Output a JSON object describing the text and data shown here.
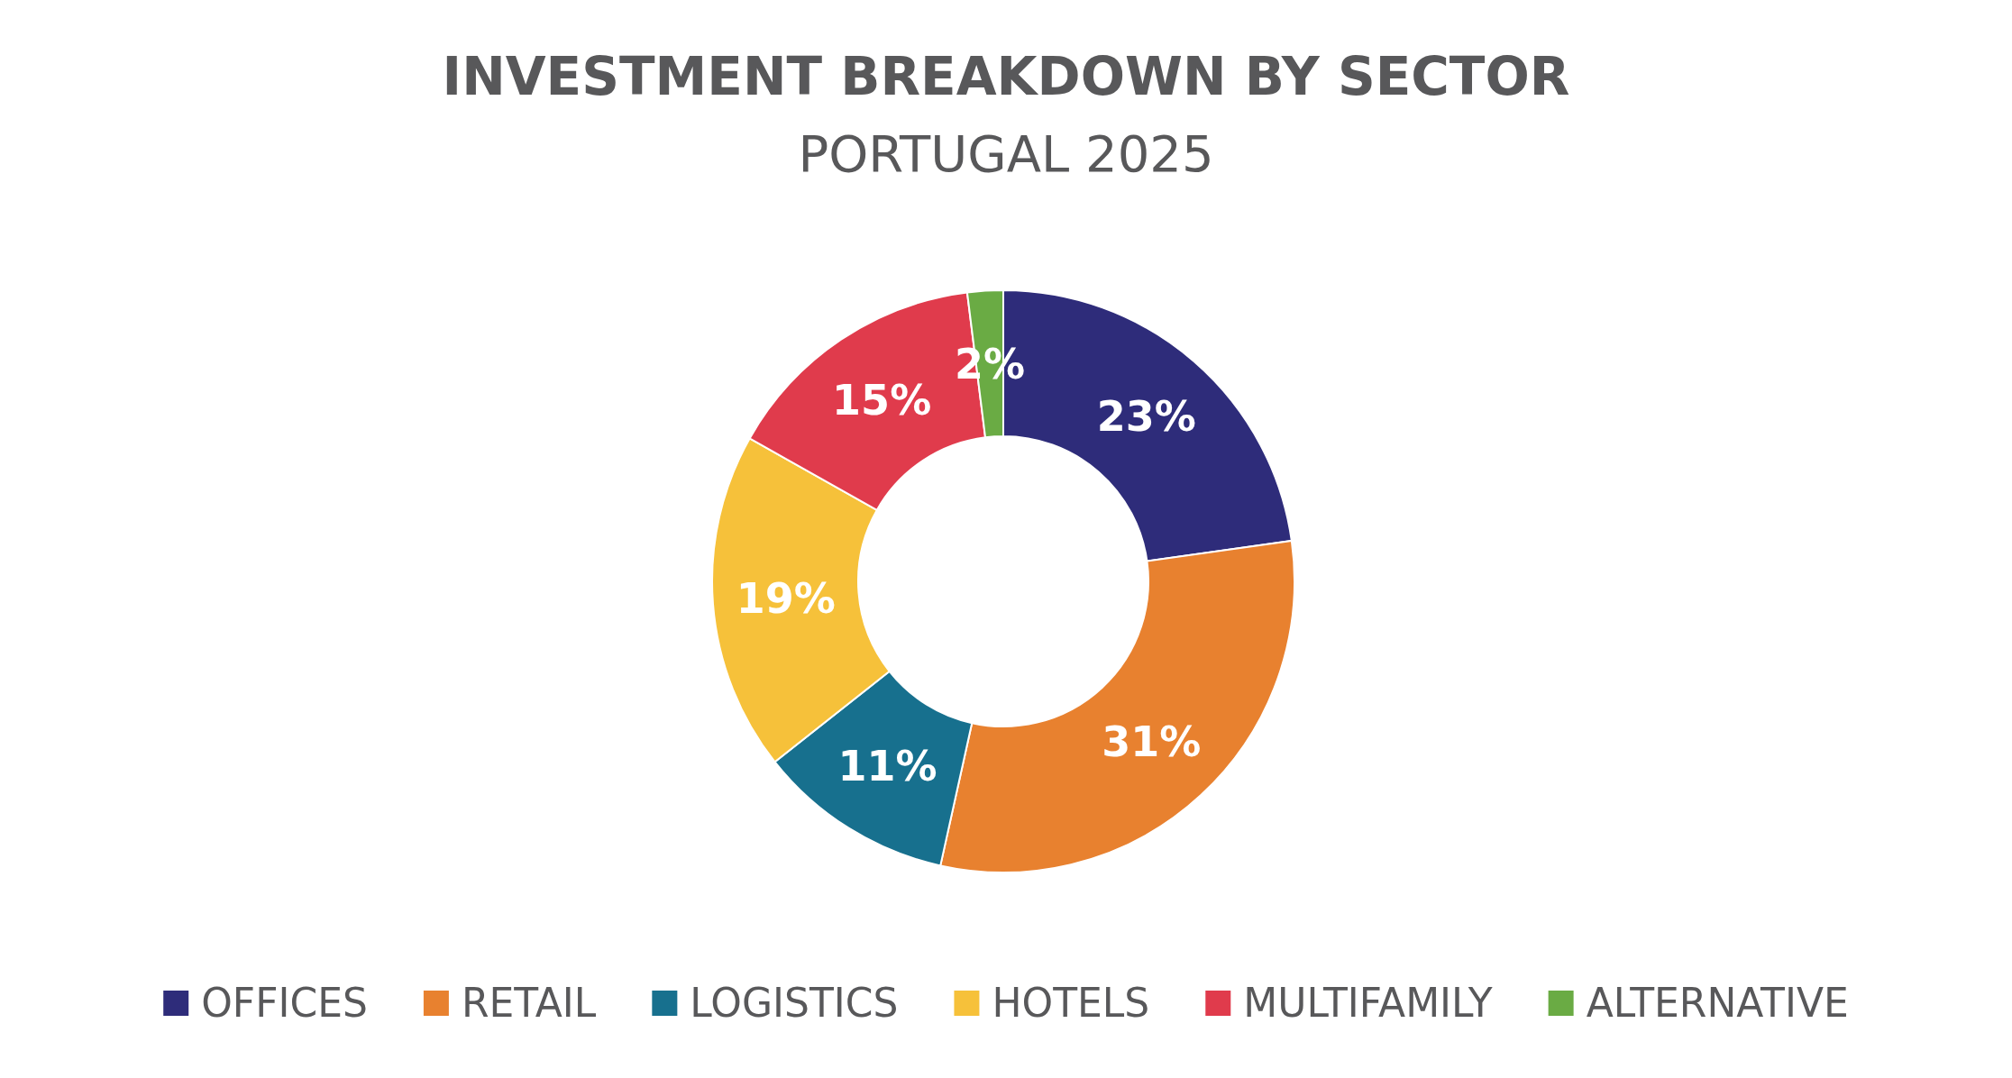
{
  "chart_data": {
    "type": "donut",
    "title": "INVESTMENT BREAKDOWN BY SECTOR",
    "subtitle": "PORTUGAL 2025",
    "categories": [
      "OFFICES",
      "RETAIL",
      "LOGISTICS",
      "HOTELS",
      "MULTIFAMILY",
      "ALTERNATIVE"
    ],
    "values": [
      23,
      31,
      11,
      19,
      15,
      2
    ],
    "value_labels": [
      "23%",
      "31%",
      "11%",
      "19%",
      "15%",
      "2%"
    ],
    "colors": [
      "#2e2c7a",
      "#e8812f",
      "#17708e",
      "#f6c13a",
      "#e03b4c",
      "#6aab44"
    ],
    "legend": "bottom"
  }
}
